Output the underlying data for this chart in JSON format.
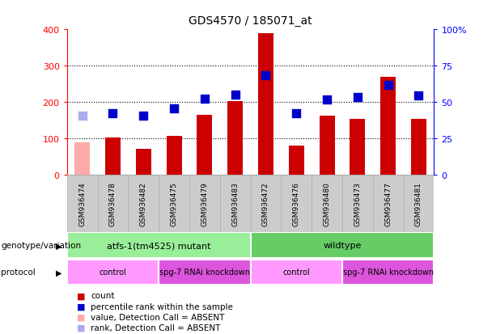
{
  "title": "GDS4570 / 185071_at",
  "samples": [
    "GSM936474",
    "GSM936478",
    "GSM936482",
    "GSM936475",
    "GSM936479",
    "GSM936483",
    "GSM936472",
    "GSM936476",
    "GSM936480",
    "GSM936473",
    "GSM936477",
    "GSM936481"
  ],
  "counts": [
    90,
    103,
    72,
    107,
    165,
    202,
    390,
    80,
    162,
    153,
    270,
    153
  ],
  "count_absent": [
    true,
    false,
    false,
    false,
    false,
    false,
    false,
    false,
    false,
    false,
    false,
    false
  ],
  "percentile_ranks": [
    162,
    170,
    163,
    182,
    210,
    220,
    275,
    170,
    208,
    213,
    248,
    218
  ],
  "rank_absent": [
    true,
    false,
    false,
    false,
    false,
    false,
    false,
    false,
    false,
    false,
    false,
    false
  ],
  "ylim_left": [
    0,
    400
  ],
  "ylim_right": [
    0,
    100
  ],
  "yticks_left": [
    0,
    100,
    200,
    300,
    400
  ],
  "yticks_right": [
    0,
    25,
    50,
    75,
    100
  ],
  "ytick_labels_right": [
    "0",
    "25",
    "50",
    "75",
    "100%"
  ],
  "bar_color_normal": "#cc0000",
  "bar_color_absent": "#ffaaaa",
  "dot_color_normal": "#0000cc",
  "dot_color_absent": "#aaaaee",
  "background_color": "#ffffff",
  "sample_bg_color": "#cccccc",
  "genotype_groups": [
    {
      "label": "atfs-1(tm4525) mutant",
      "start": 0,
      "end": 6,
      "color": "#99ee99"
    },
    {
      "label": "wildtype",
      "start": 6,
      "end": 12,
      "color": "#66cc66"
    }
  ],
  "protocol_groups": [
    {
      "label": "control",
      "start": 0,
      "end": 3,
      "color": "#ff99ff"
    },
    {
      "label": "spg-7 RNAi knockdown",
      "start": 3,
      "end": 6,
      "color": "#dd55dd"
    },
    {
      "label": "control",
      "start": 6,
      "end": 9,
      "color": "#ff99ff"
    },
    {
      "label": "spg-7 RNAi knockdown",
      "start": 9,
      "end": 12,
      "color": "#dd55dd"
    }
  ],
  "legend_items": [
    {
      "label": "count",
      "color": "#cc0000"
    },
    {
      "label": "percentile rank within the sample",
      "color": "#0000cc"
    },
    {
      "label": "value, Detection Call = ABSENT",
      "color": "#ffaaaa"
    },
    {
      "label": "rank, Detection Call = ABSENT",
      "color": "#aaaaee"
    }
  ],
  "genotype_label": "genotype/variation",
  "protocol_label": "protocol",
  "dot_size": 55,
  "bar_width": 0.5
}
